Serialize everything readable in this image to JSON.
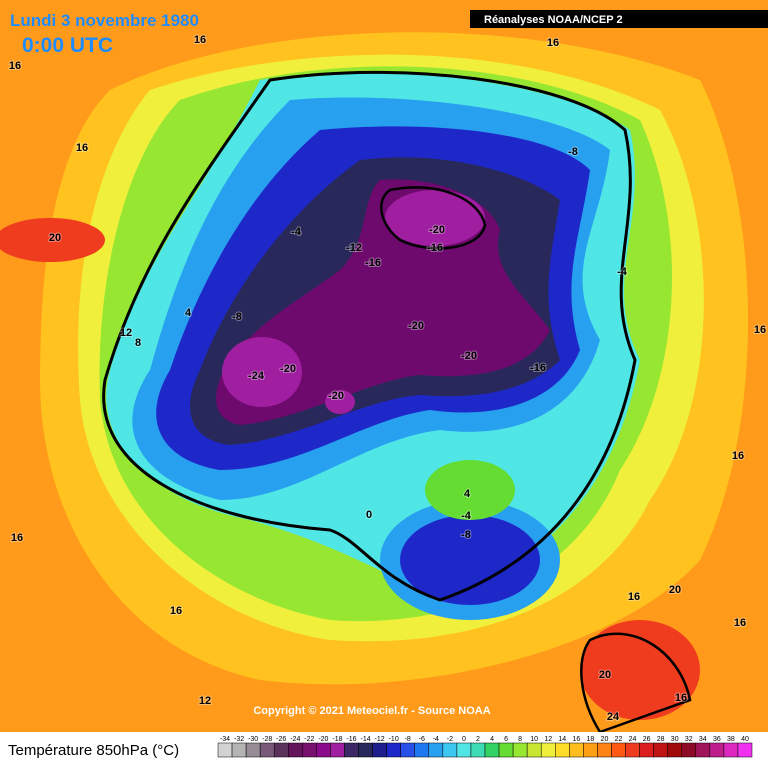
{
  "header": {
    "date": "Lundi 3 novembre 1980",
    "time": "0:00 UTC",
    "source": "Réanalyses NOAA/NCEP 2"
  },
  "map": {
    "contour_labels": [
      16,
      16,
      16,
      16,
      20,
      -4,
      -12,
      -20,
      -16,
      -16,
      -8,
      -4,
      4,
      -8,
      12,
      8,
      -20,
      -20,
      -16,
      -20,
      -24,
      -20,
      16,
      16,
      4,
      -4,
      -8,
      0,
      16,
      16,
      16,
      20,
      16,
      20,
      16,
      12,
      24
    ],
    "copyright": "Copyright © 2021 Meteociel.fr - Source NOAA"
  },
  "legend": {
    "title": "Température 850hPa (°C)",
    "ticks": [
      -34,
      -32,
      -30,
      -28,
      -26,
      -24,
      -22,
      -20,
      -18,
      -16,
      -14,
      -12,
      -10,
      -8,
      -6,
      -4,
      -2,
      0,
      2,
      4,
      6,
      8,
      10,
      12,
      14,
      16,
      18,
      20,
      22,
      24,
      26,
      28,
      30,
      32,
      34,
      36,
      38,
      40
    ],
    "colors": [
      "#d2d2d2",
      "#b4b4b4",
      "#968c96",
      "#785a78",
      "#5a325a",
      "#64145a",
      "#78106e",
      "#8c0a8c",
      "#a01ea0",
      "#3c2864",
      "#28285a",
      "#1e1e8c",
      "#1e28c8",
      "#2850e6",
      "#1e78f0",
      "#28a0f0",
      "#3cc8f0",
      "#50e6e6",
      "#3cdcb4",
      "#32d264",
      "#64dc32",
      "#96e632",
      "#c8e632",
      "#f0f03c",
      "#ffdc28",
      "#ffbe1e",
      "#ffa014",
      "#ff8214",
      "#ff5a14",
      "#f03c1e",
      "#dc1e1e",
      "#be1414",
      "#a00a0a",
      "#8c0a28",
      "#a0145a",
      "#be1e8c",
      "#dc28be",
      "#f032f0"
    ]
  }
}
